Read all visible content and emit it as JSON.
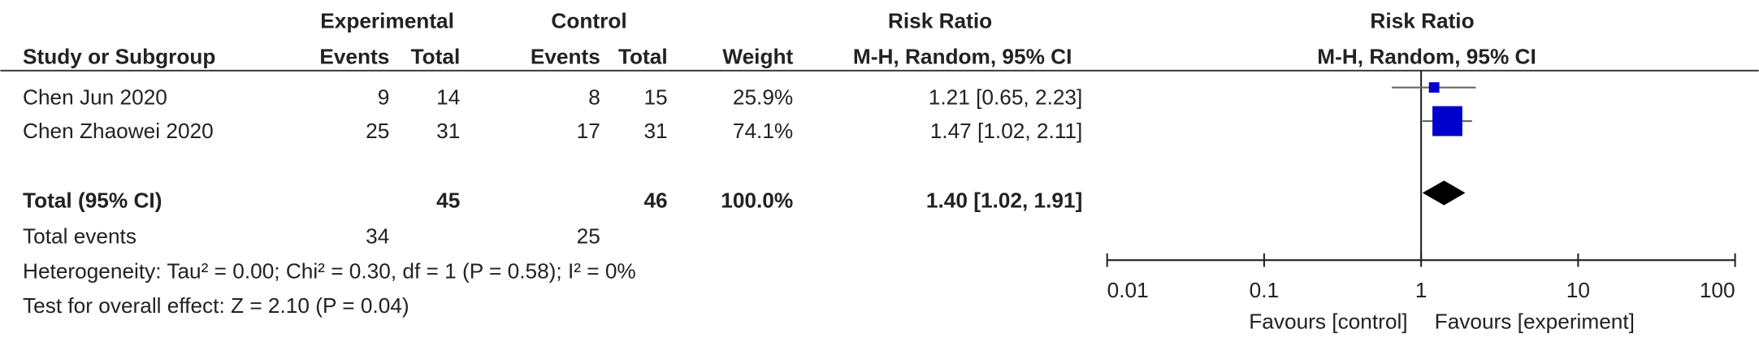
{
  "header": {
    "group_experimental": "Experimental",
    "group_control": "Control",
    "group_rr": "Risk Ratio",
    "study": "Study or Subgroup",
    "exp_events": "Events",
    "exp_total": "Total",
    "ctrl_events": "Events",
    "ctrl_total": "Total",
    "weight": "Weight",
    "rr_method": "M-H, Random, 95% CI"
  },
  "table": {
    "rows": [
      [
        "Chen Jun 2020",
        9,
        14,
        8,
        15,
        "25.9%"
      ],
      [
        "Chen Zhaowei 2020",
        25,
        31,
        17,
        31,
        "74.1%"
      ]
    ],
    "total": {
      "label": "Total (95% CI)",
      "exp_total": 45,
      "ctrl_total": 46,
      "weight": "100.0%"
    },
    "total_events": {
      "label": "Total events",
      "exp": 34,
      "ctrl": 25
    },
    "heterogeneity": "Heterogeneity: Tau² = 0.00; Chi² = 0.30, df = 1 (P = 0.58); I² = 0%",
    "overall_effect": "Test for overall effect: Z = 2.10 (P = 0.04)"
  },
  "chart_data": {
    "type": "forest",
    "title": "Risk Ratio",
    "subtitle": "M-H, Random, 95% CI",
    "values": [
      1.21,
      1.47
    ],
    "lower": [
      0.65,
      1.02
    ],
    "upper": [
      2.23,
      2.11
    ],
    "weights": [
      25.9,
      74.1
    ],
    "value_labels": [
      "1.21 [0.65, 2.23]",
      "1.47 [1.02, 2.11]"
    ],
    "total": {
      "value": 1.4,
      "lower": 1.02,
      "upper": 1.91,
      "label": "1.40 [1.02, 1.91]"
    },
    "xlim": [
      0.01,
      100
    ],
    "xticks": [
      0.01,
      0.1,
      1,
      10,
      100
    ],
    "log_x": true,
    "x_left_label": "Favours [control]",
    "x_right_label": "Favours [experiment]",
    "color": "#0000cc",
    "total_color": "#000000"
  }
}
